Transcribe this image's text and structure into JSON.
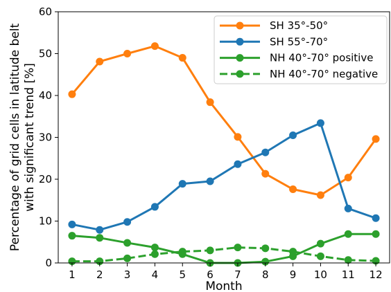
{
  "chart_data": {
    "type": "line",
    "xlabel": "Month",
    "ylabel": [
      "Percentage of grid cells in latitude belt",
      "with significant trend [%]"
    ],
    "xlim": [
      0.5,
      12.5
    ],
    "ylim": [
      0,
      60
    ],
    "x": [
      1,
      2,
      3,
      4,
      5,
      6,
      7,
      8,
      9,
      10,
      11,
      12
    ],
    "xticks": [
      "1",
      "2",
      "3",
      "4",
      "5",
      "6",
      "7",
      "8",
      "9",
      "10",
      "11",
      "12"
    ],
    "yticks": [
      "0",
      "10",
      "20",
      "30",
      "40",
      "50",
      "60"
    ],
    "ytick_values": [
      0,
      10,
      20,
      30,
      40,
      50,
      60
    ],
    "grid": false,
    "legend_position": "top-right",
    "series": [
      {
        "name": "SH 35°-50°",
        "color": "#ff7f0e",
        "dash": "solid",
        "values": [
          40.3,
          48.1,
          50.0,
          51.8,
          49.0,
          38.4,
          30.1,
          21.3,
          17.6,
          16.2,
          20.4,
          29.6
        ]
      },
      {
        "name": "SH 55°-70°",
        "color": "#1f77b4",
        "dash": "solid",
        "values": [
          9.2,
          7.9,
          9.8,
          13.4,
          18.9,
          19.5,
          23.6,
          26.4,
          30.5,
          33.4,
          13.0,
          10.7
        ]
      },
      {
        "name": "NH 40°-70° positive",
        "color": "#2ca02c",
        "dash": "solid",
        "values": [
          6.5,
          6.0,
          4.8,
          3.7,
          2.1,
          0.0,
          0.0,
          0.3,
          1.6,
          4.6,
          6.9,
          6.9
        ]
      },
      {
        "name": "NH 40°-70° negative",
        "color": "#2ca02c",
        "dash": "dashed",
        "values": [
          0.4,
          0.4,
          1.1,
          2.1,
          2.7,
          3.0,
          3.7,
          3.5,
          2.7,
          1.6,
          0.7,
          0.5
        ]
      }
    ]
  }
}
